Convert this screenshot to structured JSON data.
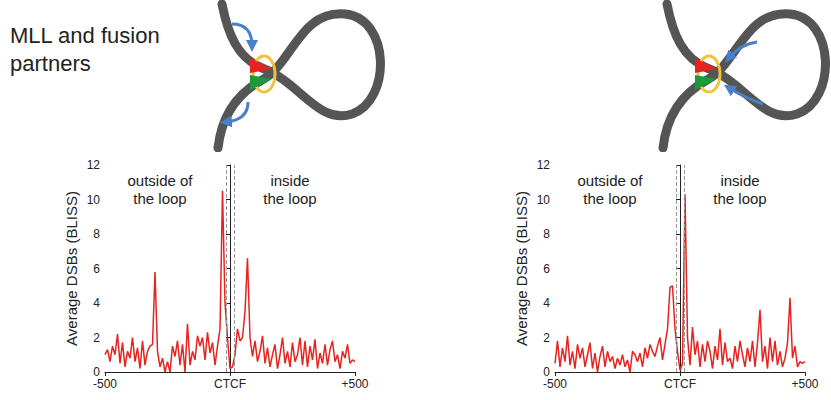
{
  "heading": "MLL and fusion partners",
  "chart_data": [
    {
      "type": "line",
      "color": "#e8231f",
      "grid": false,
      "y_label": "Average DSBs (BLISS)",
      "annotations": [
        "outside of the loop",
        "inside the loop"
      ],
      "xlim": [
        -500,
        500
      ],
      "xticks": [
        -500,
        {
          "value": 0,
          "label": "CTCF"
        },
        {
          "value": 500,
          "label": "+500"
        }
      ],
      "ylim": [
        0,
        12
      ],
      "yticks": [
        0,
        2,
        4,
        6,
        8,
        10,
        12
      ],
      "ctcf_site": [
        -15,
        15
      ],
      "x": [
        -500,
        -490,
        -480,
        -470,
        -460,
        -450,
        -440,
        -430,
        -420,
        -410,
        -400,
        -390,
        -380,
        -370,
        -360,
        -350,
        -340,
        -330,
        -320,
        -310,
        -300,
        -290,
        -280,
        -270,
        -260,
        -250,
        -240,
        -230,
        -220,
        -210,
        -200,
        -190,
        -180,
        -170,
        -160,
        -150,
        -140,
        -130,
        -120,
        -110,
        -100,
        -90,
        -80,
        -70,
        -60,
        -50,
        -40,
        -30,
        -20,
        -10,
        0,
        10,
        20,
        30,
        40,
        50,
        60,
        70,
        80,
        90,
        100,
        110,
        120,
        130,
        140,
        150,
        160,
        170,
        180,
        190,
        200,
        210,
        220,
        230,
        240,
        250,
        260,
        270,
        280,
        290,
        300,
        310,
        320,
        330,
        340,
        350,
        360,
        370,
        380,
        390,
        400,
        410,
        420,
        430,
        440,
        450,
        460,
        470,
        480,
        490,
        500
      ],
      "values": [
        1.0,
        1.3,
        0.6,
        1.5,
        1.0,
        2.2,
        0.5,
        1.7,
        0.3,
        1.2,
        0.8,
        2.0,
        0.6,
        1.4,
        0.2,
        1.8,
        0.4,
        1.2,
        1.5,
        1.6,
        5.8,
        1.2,
        0.3,
        0.8,
        0.0,
        0.6,
        0.0,
        1.5,
        0.9,
        1.8,
        0.4,
        1.6,
        0.0,
        2.8,
        0.4,
        1.2,
        0.7,
        2.1,
        1.5,
        2.0,
        0.7,
        2.3,
        1.1,
        1.7,
        0.4,
        1.5,
        2.5,
        10.5,
        4.0,
        2.0,
        0.2,
        0.3,
        1.0,
        2.5,
        1.8,
        2.0,
        3.5,
        6.6,
        2.0,
        0.9,
        1.8,
        0.6,
        1.2,
        2.1,
        0.5,
        1.4,
        0.3,
        1.0,
        1.6,
        0.2,
        1.0,
        2.0,
        0.5,
        1.2,
        0.3,
        1.7,
        0.6,
        1.0,
        2.0,
        0.4,
        1.8,
        0.3,
        1.5,
        0.7,
        1.9,
        0.2,
        1.1,
        0.5,
        1.6,
        0.4,
        1.3,
        1.8,
        0.6,
        1.0,
        0.2,
        1.2,
        0.8,
        1.6,
        0.5,
        0.7,
        0.6
      ]
    },
    {
      "type": "line",
      "color": "#e8231f",
      "grid": false,
      "y_label": "Average DSBs (BLISS)",
      "annotations": [
        "outside of the loop",
        "inside the loop"
      ],
      "xlim": [
        -500,
        500
      ],
      "xticks": [
        -500,
        {
          "value": 0,
          "label": "CTCF"
        },
        {
          "value": 500,
          "label": "+500"
        }
      ],
      "ylim": [
        0,
        12
      ],
      "yticks": [
        0,
        2,
        4,
        6,
        8,
        10,
        12
      ],
      "ctcf_site": [
        -15,
        15
      ],
      "x": [
        -500,
        -490,
        -480,
        -470,
        -460,
        -450,
        -440,
        -430,
        -420,
        -410,
        -400,
        -390,
        -380,
        -370,
        -360,
        -350,
        -340,
        -330,
        -320,
        -310,
        -300,
        -290,
        -280,
        -270,
        -260,
        -250,
        -240,
        -230,
        -220,
        -210,
        -200,
        -190,
        -180,
        -170,
        -160,
        -150,
        -140,
        -130,
        -120,
        -110,
        -100,
        -90,
        -80,
        -70,
        -60,
        -50,
        -40,
        -30,
        -20,
        -10,
        0,
        10,
        20,
        30,
        40,
        50,
        60,
        70,
        80,
        90,
        100,
        110,
        120,
        130,
        140,
        150,
        160,
        170,
        180,
        190,
        200,
        210,
        220,
        230,
        240,
        250,
        260,
        270,
        280,
        290,
        300,
        310,
        320,
        330,
        340,
        350,
        360,
        370,
        380,
        390,
        400,
        410,
        420,
        430,
        440,
        450,
        460,
        470,
        480,
        490,
        500
      ],
      "values": [
        0.5,
        1.8,
        0.3,
        1.4,
        0.6,
        2.1,
        0.4,
        1.2,
        0.2,
        1.6,
        0.8,
        1.4,
        0.3,
        1.0,
        1.7,
        0.2,
        1.1,
        0.0,
        0.9,
        1.5,
        0.3,
        1.2,
        0.6,
        0.9,
        0.2,
        0.8,
        0.4,
        1.0,
        0.3,
        0.7,
        0.0,
        1.2,
        1.0,
        0.6,
        1.1,
        0.3,
        1.4,
        0.8,
        1.6,
        1.2,
        0.9,
        1.5,
        2.0,
        0.7,
        1.6,
        2.5,
        4.9,
        5.0,
        2.5,
        1.2,
        0.1,
        0.5,
        10.3,
        2.0,
        0.4,
        2.6,
        1.0,
        1.8,
        0.3,
        1.6,
        0.6,
        1.8,
        1.2,
        0.2,
        1.5,
        0.7,
        2.5,
        0.4,
        1.7,
        0.6,
        0.8,
        0.2,
        1.5,
        0.6,
        1.8,
        1.0,
        0.3,
        1.4,
        0.6,
        1.8,
        0.3,
        1.7,
        3.6,
        0.6,
        1.5,
        0.2,
        2.0,
        0.6,
        1.8,
        0.4,
        1.2,
        0.3,
        0.8,
        1.7,
        4.3,
        0.8,
        1.5,
        0.3,
        0.6,
        0.5,
        0.6
      ]
    }
  ]
}
